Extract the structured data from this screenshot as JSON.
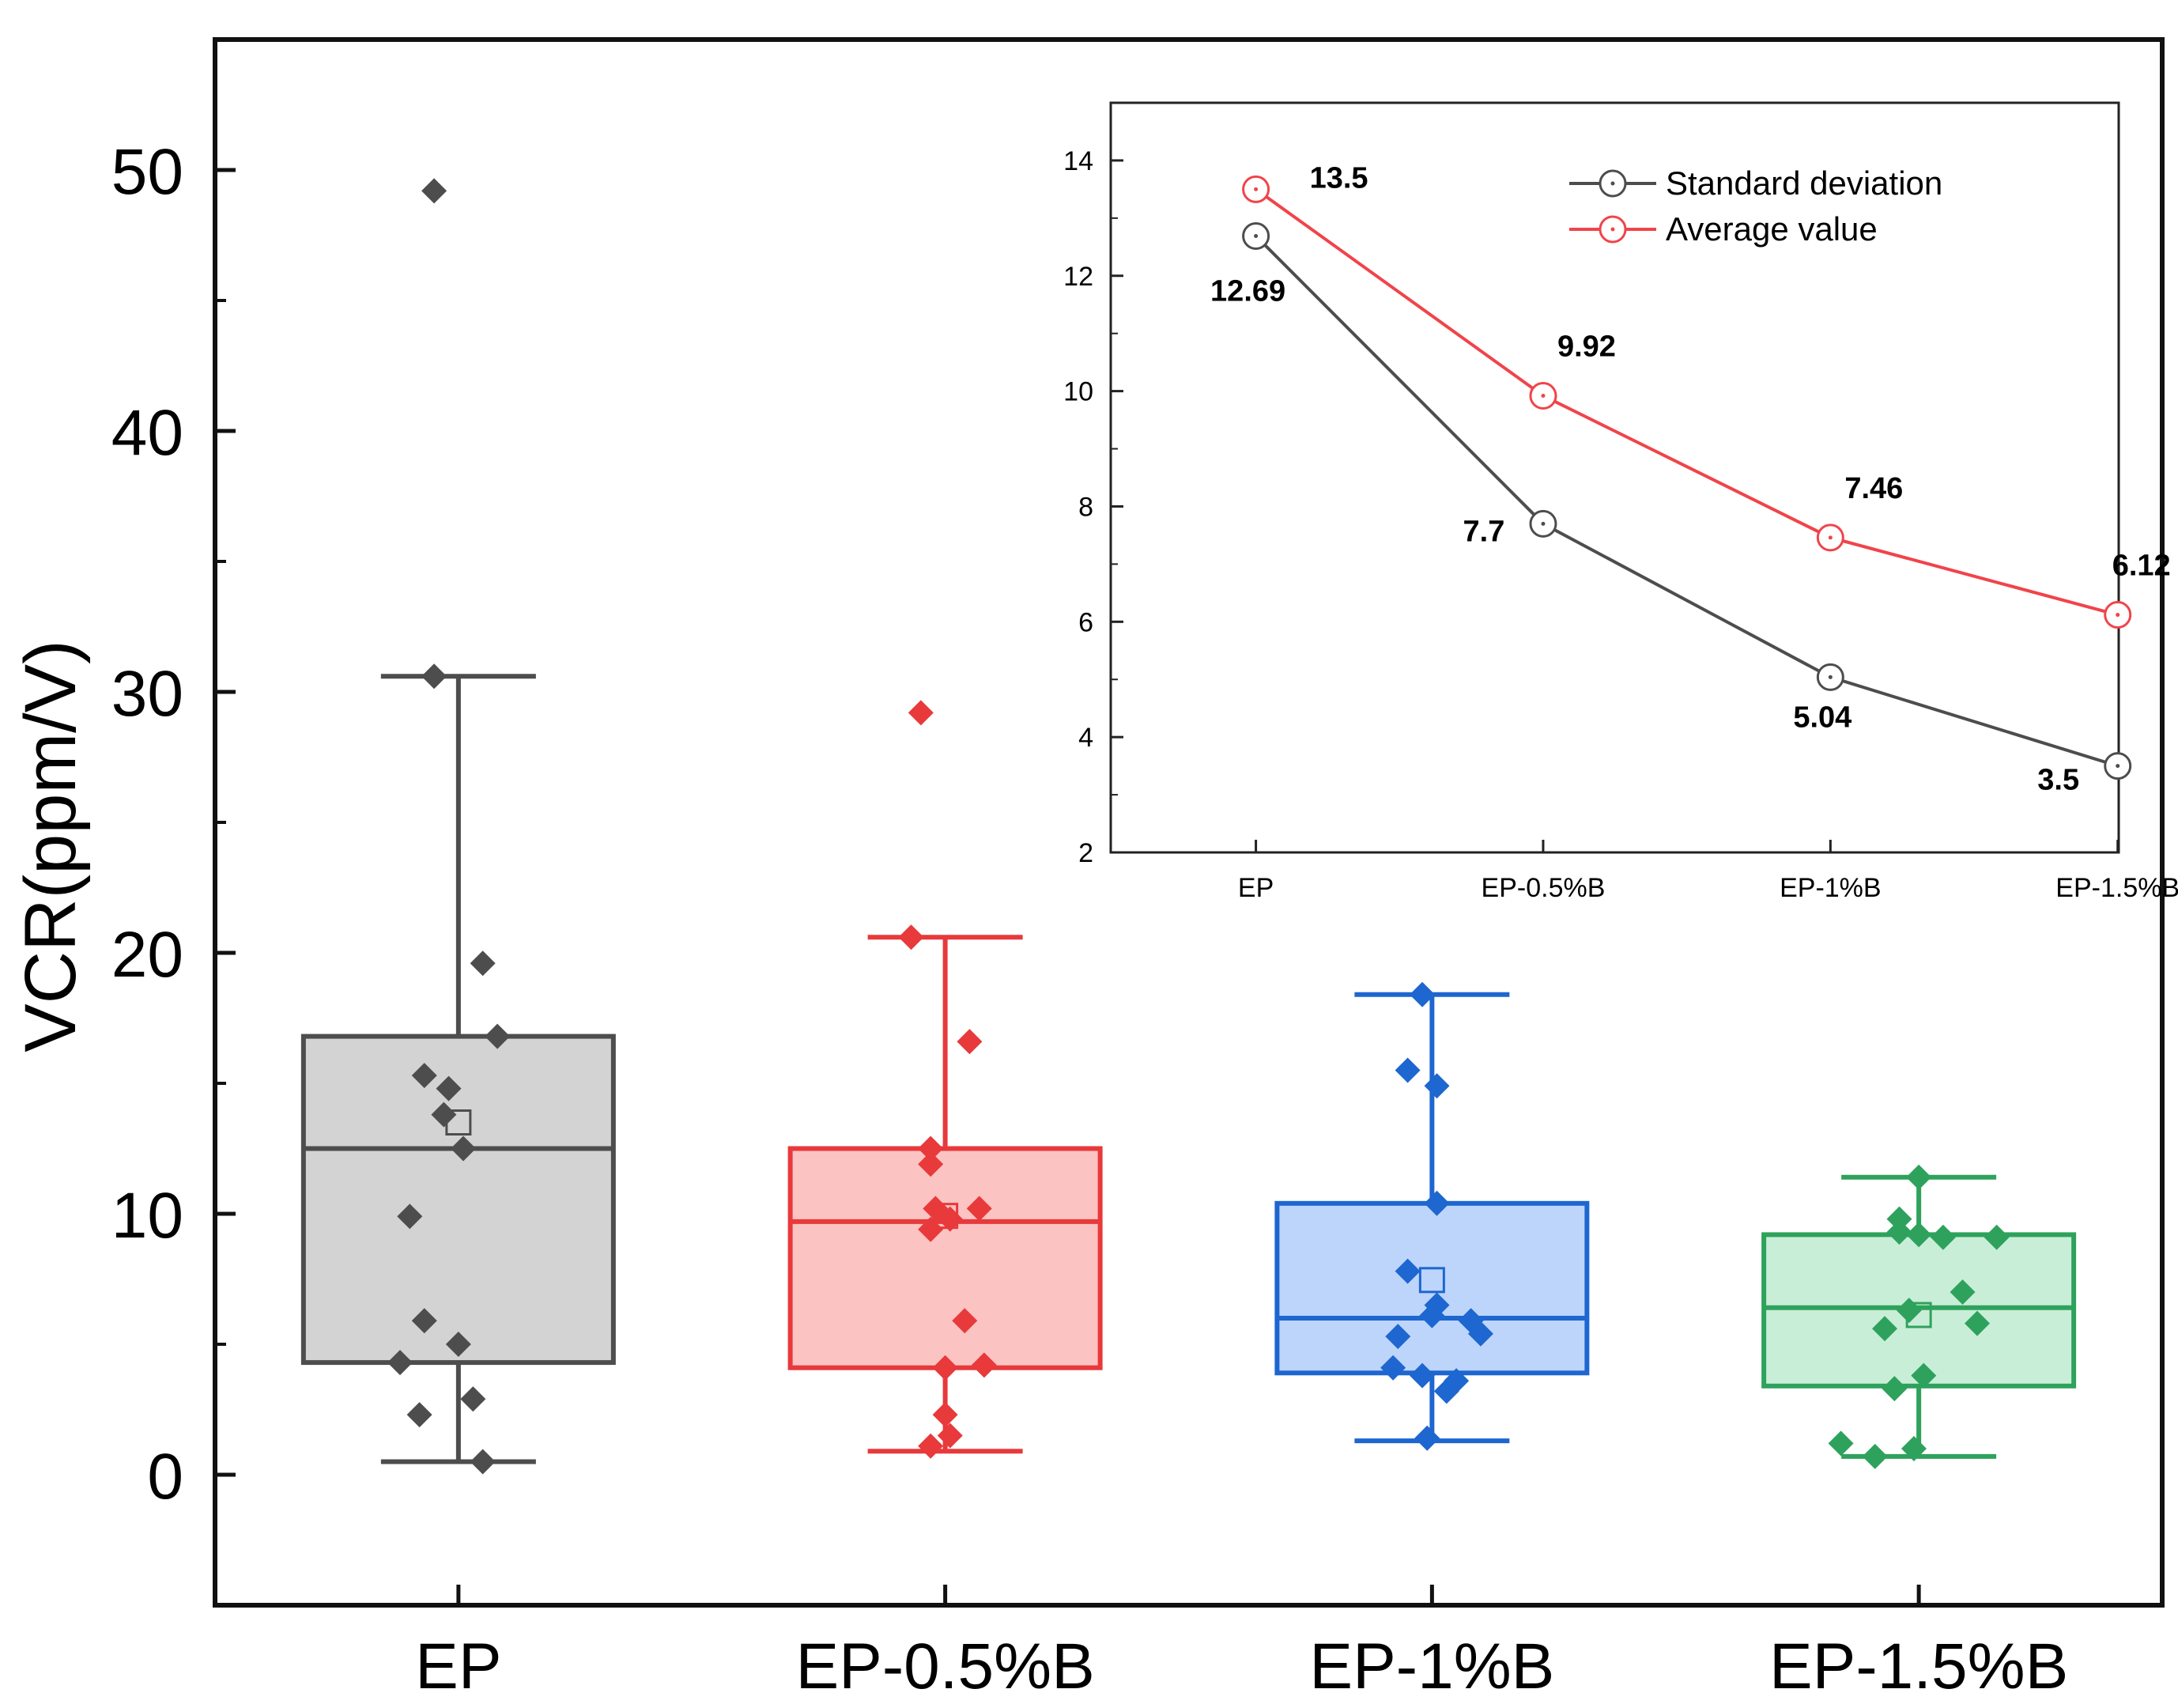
{
  "chart_data": [
    {
      "type": "box",
      "ylabel": "VCR(ppm/V)",
      "xlabel": "",
      "ylim": [
        -5,
        55
      ],
      "yticks": [
        "0",
        "10",
        "20",
        "30",
        "40",
        "50"
      ],
      "categories": [
        "EP",
        "EP-0.5%B",
        "EP-1%B",
        "EP-1.5%B"
      ],
      "grid": false,
      "boxes": [
        {
          "name": "EP",
          "q1": 4.3,
          "median": 12.5,
          "q3": 16.8,
          "whisker_low": 0.5,
          "whisker_high": 30.6,
          "mean": 13.5,
          "color": "#4d4d4d",
          "fill": "#d3d3d3",
          "points": [
            49.2,
            30.6,
            19.6,
            16.8,
            15.3,
            14.8,
            13.8,
            12.5,
            9.9,
            5.9,
            5.0,
            4.3,
            2.9,
            2.3,
            0.5
          ],
          "jitter": [
            -0.05,
            -0.05,
            0.05,
            0.08,
            -0.07,
            -0.02,
            -0.03,
            0.01,
            -0.1,
            -0.07,
            0.0,
            -0.12,
            0.03,
            -0.08,
            0.05
          ]
        },
        {
          "name": "EP-0.5%B",
          "q1": 4.1,
          "median": 9.7,
          "q3": 12.5,
          "whisker_low": 0.9,
          "whisker_high": 20.6,
          "mean": 9.92,
          "color": "#e8393b",
          "fill": "#fcc3c3",
          "points": [
            29.2,
            20.6,
            16.6,
            12.5,
            11.9,
            10.2,
            10.2,
            9.8,
            9.4,
            5.9,
            4.2,
            4.1,
            2.3,
            1.5,
            1.1
          ],
          "jitter": [
            -0.05,
            -0.07,
            0.05,
            -0.03,
            -0.03,
            0.07,
            -0.02,
            0.01,
            -0.03,
            0.04,
            0.08,
            0.0,
            0.0,
            0.01,
            -0.03
          ]
        },
        {
          "name": "EP-1%B",
          "q1": 3.9,
          "median": 6.0,
          "q3": 10.4,
          "whisker_low": 1.3,
          "whisker_high": 18.4,
          "mean": 7.46,
          "color": "#1e66d0",
          "fill": "#bdd5fb",
          "points": [
            18.4,
            15.5,
            14.9,
            10.4,
            7.8,
            6.5,
            6.1,
            5.9,
            5.4,
            5.3,
            4.1,
            3.8,
            3.6,
            3.2,
            1.4
          ],
          "jitter": [
            -0.02,
            -0.05,
            0.01,
            0.01,
            -0.05,
            0.01,
            0.0,
            0.08,
            0.1,
            -0.07,
            -0.08,
            -0.02,
            0.05,
            0.03,
            -0.01
          ]
        },
        {
          "name": "EP-1.5%B",
          "q1": 3.4,
          "median": 6.4,
          "q3": 9.2,
          "whisker_low": 0.7,
          "whisker_high": 11.4,
          "mean": 6.12,
          "color": "#2ea25c",
          "fill": "#c9eed8",
          "points": [
            11.4,
            9.8,
            9.3,
            9.2,
            9.1,
            9.1,
            7.0,
            6.3,
            5.8,
            5.6,
            3.8,
            3.3,
            1.2,
            1.0,
            0.7
          ],
          "jitter": [
            0.0,
            -0.04,
            -0.04,
            0.0,
            0.05,
            0.16,
            0.09,
            -0.02,
            0.12,
            -0.07,
            0.01,
            -0.05,
            -0.16,
            -0.01,
            -0.09
          ]
        }
      ]
    },
    {
      "type": "line",
      "categories": [
        "EP",
        "EP-0.5%B",
        "EP-1%B",
        "EP-1.5%B"
      ],
      "ylim": [
        2,
        15
      ],
      "yticks": [
        "2",
        "4",
        "6",
        "8",
        "10",
        "12",
        "14"
      ],
      "legend": "top-right",
      "series": [
        {
          "name": "Standard deviation",
          "values": [
            12.69,
            7.7,
            5.04,
            3.5
          ],
          "labels": [
            "12.69",
            "7.7",
            "5.04",
            "3.5"
          ],
          "color": "#4d4d4d"
        },
        {
          "name": "Average value",
          "values": [
            13.5,
            9.92,
            7.46,
            6.12
          ],
          "labels": [
            "13.5",
            "9.92",
            "7.46",
            "6.12"
          ],
          "color": "#f0444a"
        }
      ]
    }
  ]
}
